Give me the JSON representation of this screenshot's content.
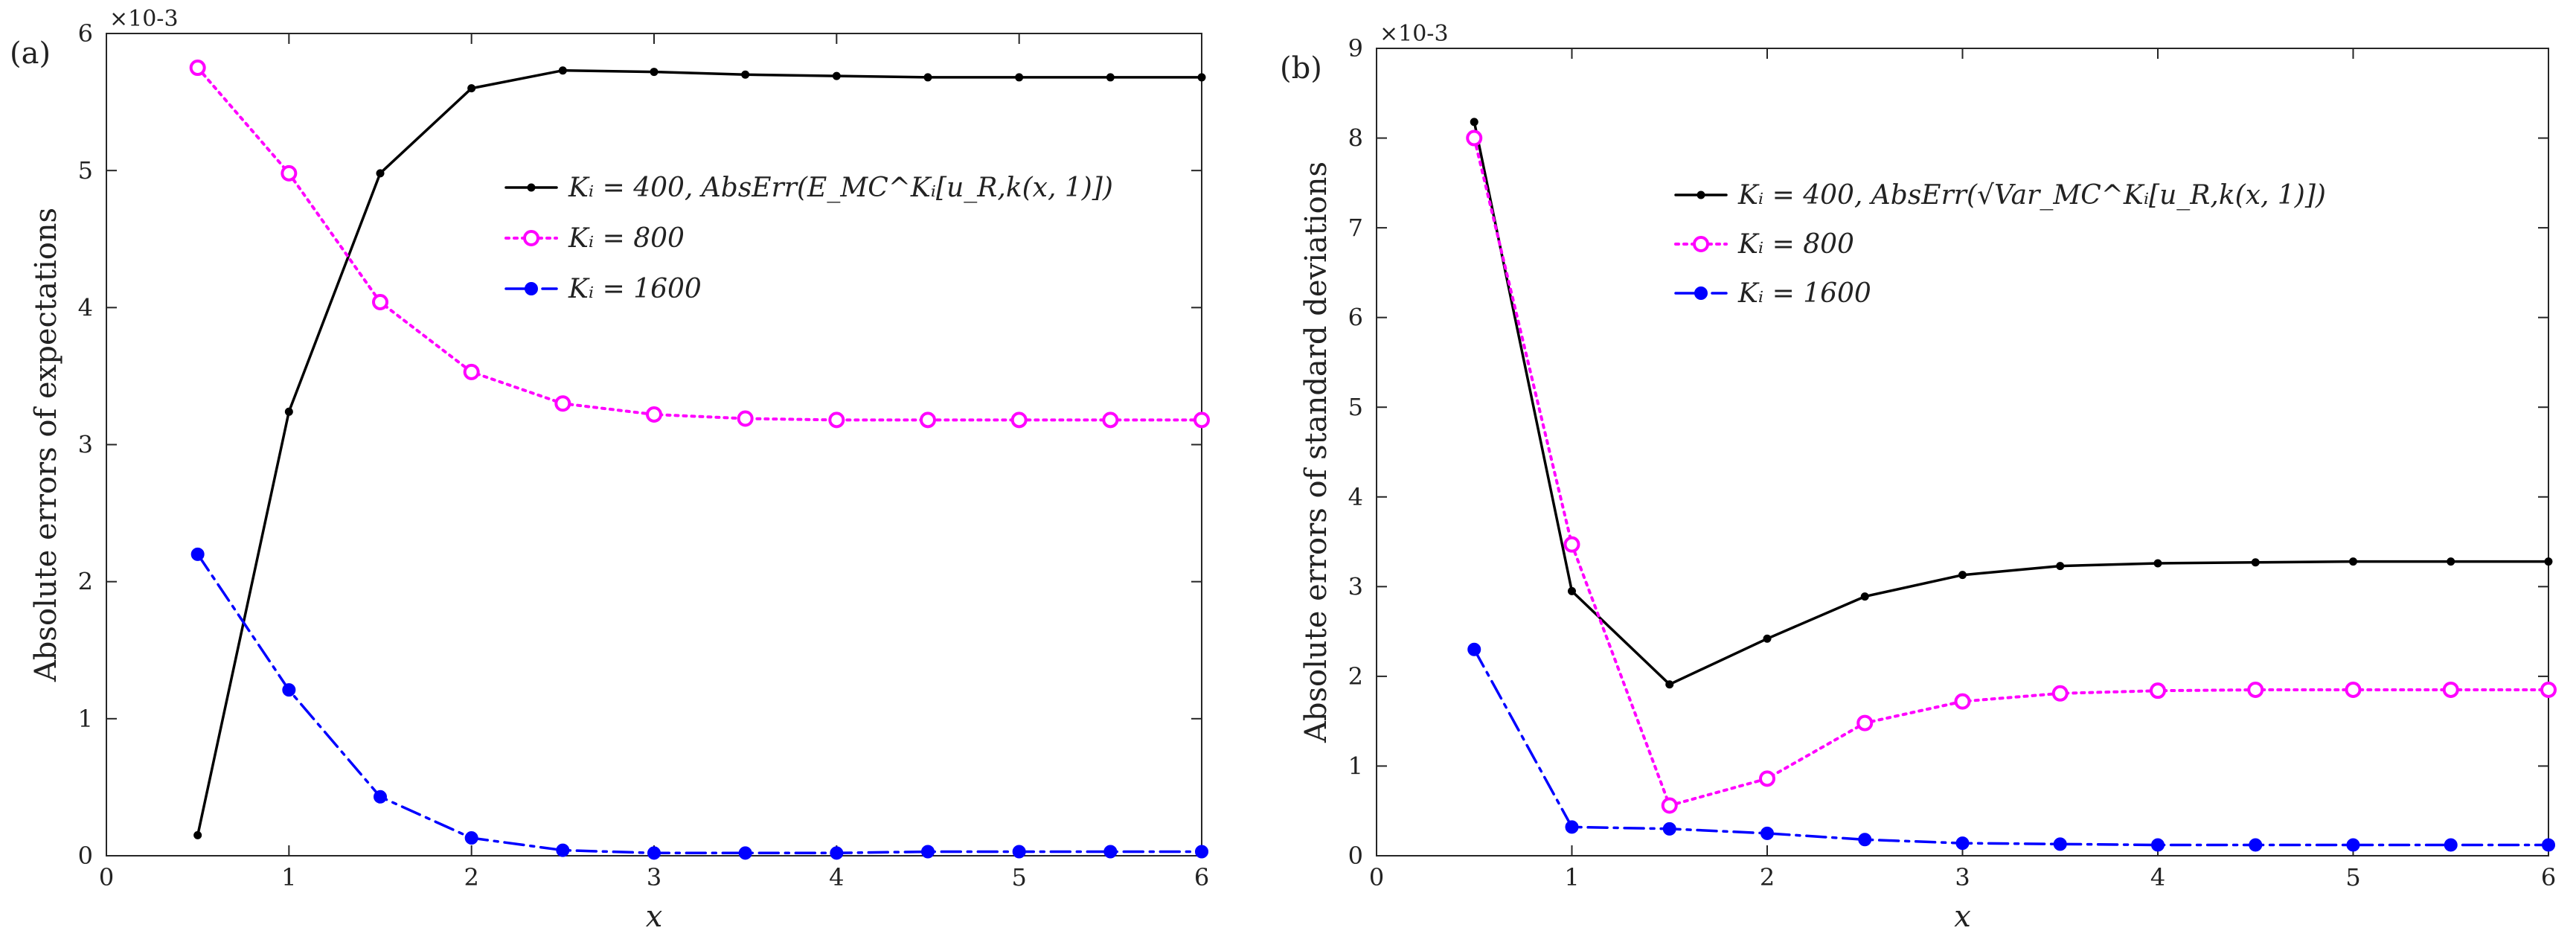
{
  "chart_data": [
    {
      "type": "line",
      "panel_label": "(a)",
      "exponent_label": "×10-3",
      "xlabel": "x",
      "ylabel": "Absolute errors of expectations",
      "xlim": [
        0,
        6
      ],
      "ylim": [
        0,
        6
      ],
      "xticks": [
        0,
        1,
        2,
        3,
        4,
        5,
        6
      ],
      "yticks": [
        0,
        1,
        2,
        3,
        4,
        5,
        6
      ],
      "grid": false,
      "legend_position": "top-right",
      "x": [
        0.5,
        1,
        1.5,
        2,
        2.5,
        3,
        3.5,
        4,
        4.5,
        5,
        5.5,
        6
      ],
      "series": [
        {
          "name": "K_i = 400, AbsErr(E_MC^{K_i}[u_{R,k}(x,1)])",
          "legend_label": "Kᵢ = 400, AbsErr(E_MC^Kᵢ[u_R,k(x, 1)])",
          "color": "#000000",
          "style": "solid",
          "marker": "dot",
          "values": [
            0.15,
            3.24,
            4.98,
            5.6,
            5.73,
            5.72,
            5.7,
            5.69,
            5.68,
            5.68,
            5.68,
            5.68
          ]
        },
        {
          "name": "K_i = 800",
          "legend_label": "Kᵢ = 800",
          "color": "#ff00ff",
          "style": "dotted",
          "marker": "circle",
          "values": [
            5.75,
            4.98,
            4.04,
            3.53,
            3.3,
            3.22,
            3.19,
            3.18,
            3.18,
            3.18,
            3.18,
            3.18
          ]
        },
        {
          "name": "K_i = 1600",
          "legend_label": "Kᵢ = 1600",
          "color": "#0000ff",
          "style": "dashdot",
          "marker": "filled-circle",
          "values": [
            2.2,
            1.21,
            0.43,
            0.13,
            0.04,
            0.02,
            0.02,
            0.02,
            0.03,
            0.03,
            0.03,
            0.03
          ]
        }
      ]
    },
    {
      "type": "line",
      "panel_label": "(b)",
      "exponent_label": "×10-3",
      "xlabel": "x",
      "ylabel": "Absolute errors of standard deviations",
      "xlim": [
        0,
        6
      ],
      "ylim": [
        0,
        9
      ],
      "xticks": [
        0,
        1,
        2,
        3,
        4,
        5,
        6
      ],
      "yticks": [
        0,
        1,
        2,
        3,
        4,
        5,
        6,
        7,
        8,
        9
      ],
      "grid": false,
      "legend_position": "top-right",
      "x": [
        0.5,
        1,
        1.5,
        2,
        2.5,
        3,
        3.5,
        4,
        4.5,
        5,
        5.5,
        6
      ],
      "series": [
        {
          "name": "K_i = 400, AbsErr(sqrt(Var_MC^{K_i}[u_{R,k}(x,1)]))",
          "legend_label": "Kᵢ = 400, AbsErr(√Var_MC^Kᵢ[u_R,k(x, 1)])",
          "color": "#000000",
          "style": "solid",
          "marker": "dot",
          "values": [
            8.18,
            2.95,
            1.91,
            2.42,
            2.89,
            3.13,
            3.23,
            3.26,
            3.27,
            3.28,
            3.28,
            3.28
          ]
        },
        {
          "name": "K_i = 800",
          "legend_label": "Kᵢ = 800",
          "color": "#ff00ff",
          "style": "dotted",
          "marker": "circle",
          "values": [
            8.0,
            3.47,
            0.56,
            0.86,
            1.48,
            1.72,
            1.81,
            1.84,
            1.85,
            1.85,
            1.85,
            1.85
          ]
        },
        {
          "name": "K_i = 1600",
          "legend_label": "Kᵢ = 1600",
          "color": "#0000ff",
          "style": "dashdot",
          "marker": "filled-circle",
          "values": [
            2.3,
            0.32,
            0.3,
            0.25,
            0.18,
            0.14,
            0.13,
            0.12,
            0.12,
            0.12,
            0.12,
            0.12
          ]
        }
      ]
    }
  ]
}
